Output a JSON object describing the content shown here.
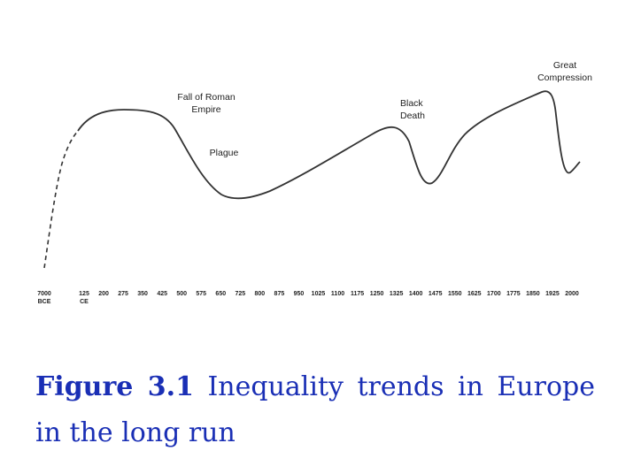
{
  "chart_data": {
    "type": "line",
    "categories": [
      "7000\nBCE",
      "125\nCE",
      "200",
      "275",
      "350",
      "425",
      "500",
      "575",
      "650",
      "725",
      "800",
      "875",
      "950",
      "1025",
      "1100",
      "1175",
      "1250",
      "1325",
      "1400",
      "1475",
      "1550",
      "1625",
      "1700",
      "1775",
      "1850",
      "1925",
      "2000"
    ],
    "annotations": [
      "Fall of Roman\nEmpire",
      "Plague",
      "Black\nDeath",
      "Great\nCompression"
    ],
    "caption": {
      "label": "Figure 3.1",
      "text": "Inequality trends in Europe in the long run"
    }
  }
}
